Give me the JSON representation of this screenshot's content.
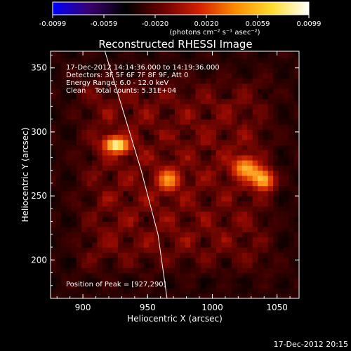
{
  "chart_data": {
    "type": "heatmap",
    "title": "Reconstructed RHESSI Image",
    "xlabel": "Heliocentric X (arcsec)",
    "ylabel": "Heliocentric Y (arcsec)",
    "xlim": [
      875,
      1067
    ],
    "ylim": [
      170,
      363
    ],
    "xticks": [
      900,
      950,
      1000,
      1050
    ],
    "yticks": [
      200,
      250,
      300,
      350
    ],
    "colorbar": {
      "ticks": [
        "-0.0099",
        "-0.0059",
        "-0.0020",
        "0.0020",
        "0.0059",
        "0.0099"
      ],
      "range": [
        -0.0099,
        0.0099
      ],
      "unit_label": "(photons cm⁻² s⁻¹ asec⁻²)",
      "colors": [
        "#0000ff",
        "#3a0070",
        "#000000",
        "#6a0000",
        "#d41f00",
        "#ff8c00",
        "#ffdd30",
        "#ffffff"
      ]
    },
    "annotations": [
      "17-Dec-2012 14:14:36.000 to 14:19:36.000",
      "Detectors: 3F 5F 6F 7F 8F 9F, Att 0",
      "Energy Range: 6.0 - 12.0 keV",
      "Clean    Total counts: 5.31E+04"
    ],
    "peak_label": "Position of Peak = [927,290]",
    "peak": [
      927,
      290
    ],
    "sources": [
      {
        "x": 926,
        "y": 290,
        "intensity": 1.0,
        "sx": 9,
        "sy": 6
      },
      {
        "x": 966,
        "y": 263,
        "intensity": 0.8,
        "sx": 8,
        "sy": 8
      },
      {
        "x": 1025,
        "y": 272,
        "intensity": 0.8,
        "sx": 9,
        "sy": 8
      },
      {
        "x": 1040,
        "y": 262,
        "intensity": 0.75,
        "sx": 7,
        "sy": 7
      }
    ],
    "limb_curve": [
      [
        917,
        363
      ],
      [
        930,
        320
      ],
      [
        945,
        270
      ],
      [
        958,
        220
      ],
      [
        965,
        170
      ]
    ]
  },
  "footer": {
    "timestamp": "17-Dec-2012 20:15"
  }
}
